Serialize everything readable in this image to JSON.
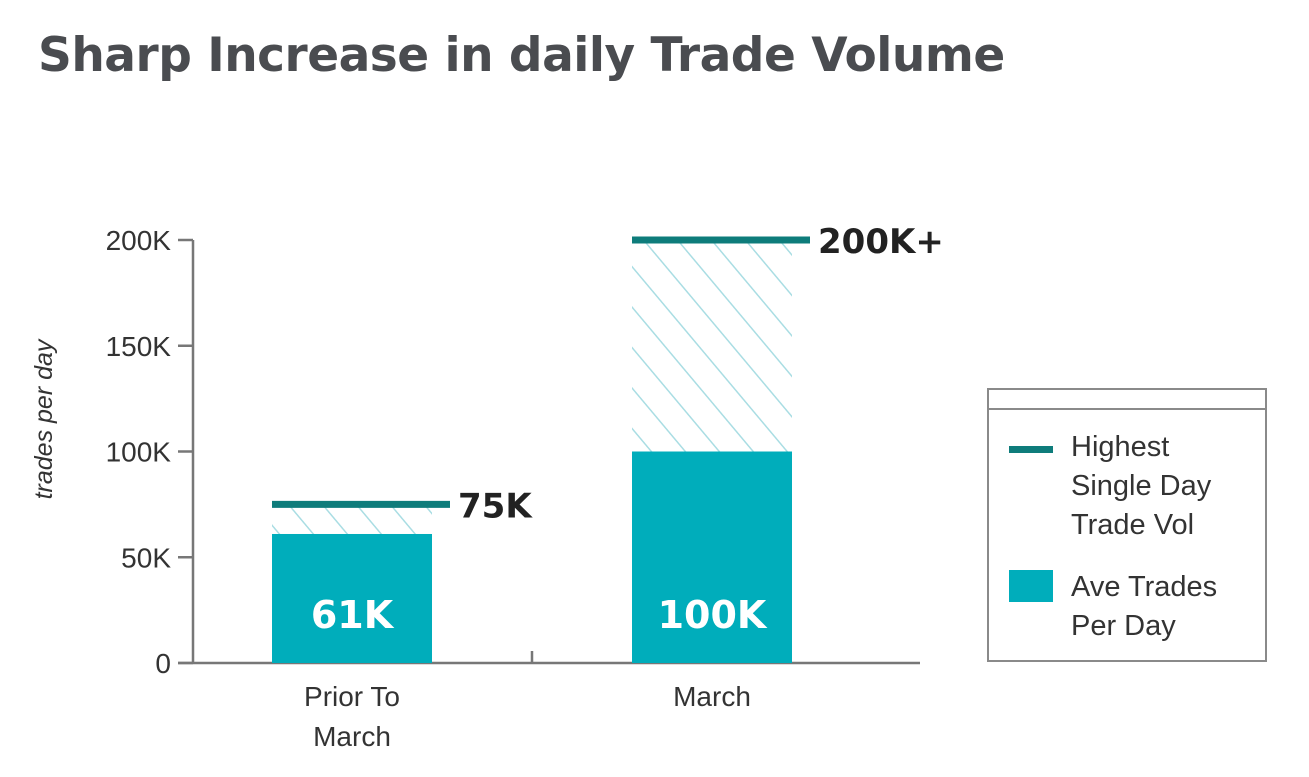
{
  "title": "Sharp Increase in daily Trade Volume",
  "chart_data": {
    "type": "bar",
    "categories": [
      "Prior To March",
      "March"
    ],
    "category_lines": [
      [
        "Prior To",
        "March"
      ],
      [
        "March"
      ]
    ],
    "series": [
      {
        "name": "Ave Trades Per Day",
        "values": [
          61000,
          100000
        ],
        "value_labels": [
          "61K",
          "100K"
        ]
      },
      {
        "name": "Highest Single Day Trade Vol",
        "values": [
          75000,
          200000
        ],
        "value_labels": [
          "75K",
          "200K+"
        ]
      }
    ],
    "ylabel": "trades per day",
    "xlabel": "",
    "ylim": [
      0,
      200000
    ],
    "yticks": [
      0,
      50000,
      100000,
      150000,
      200000
    ],
    "ytick_labels": [
      "0",
      "50K",
      "100K",
      "150K",
      "200K"
    ],
    "grid": false,
    "legend_position": "right"
  },
  "legend": {
    "items": [
      {
        "label": "Highest Single Day Trade Vol",
        "lines": [
          "Highest",
          "Single Day",
          "Trade Vol"
        ]
      },
      {
        "label": "Ave Trades Per Day",
        "lines": [
          "Ave Trades",
          "Per Day"
        ]
      }
    ]
  },
  "colors": {
    "bar": "#00adbb",
    "peak_line": "#0e7c7b",
    "hatch": "#a9dde3",
    "axis": "#777777",
    "title": "#4a4c50"
  }
}
